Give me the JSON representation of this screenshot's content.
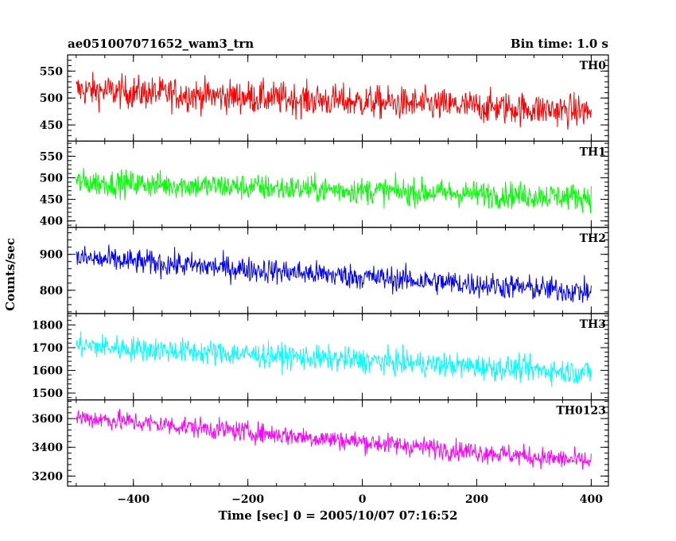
{
  "chart_data": {
    "type": "line",
    "title_left": "ae051007071652_wam3_trn",
    "title_right": "Bin time: 1.0 s",
    "xlabel": "Time [sec] 0 = 2005/10/07 07:16:52",
    "ylabel": "Counts/sec",
    "xlim": [
      -515,
      430
    ],
    "x_ticks": [
      -400,
      -200,
      0,
      200,
      400
    ],
    "x_tick_labels": [
      "−400",
      "−200",
      "0",
      "200",
      "400"
    ],
    "bin_seconds": 1.0,
    "x_range": [
      -500,
      400
    ],
    "grid": false,
    "series": [
      {
        "name": "TH0",
        "color": "#ff0000",
        "ylim": [
          420,
          580
        ],
        "yticks": [
          450,
          500,
          550
        ],
        "start": 515,
        "end": 475,
        "noise": 28
      },
      {
        "name": "TH1",
        "color": "#00ff00",
        "ylim": [
          385,
          585
        ],
        "yticks": [
          400,
          450,
          500,
          550
        ],
        "start": 490,
        "end": 455,
        "noise": 28
      },
      {
        "name": "TH2",
        "color": "#0000ff",
        "ylim": [
          735,
          975
        ],
        "yticks": [
          800,
          900
        ],
        "start": 890,
        "end": 795,
        "noise": 32
      },
      {
        "name": "TH3",
        "color": "#00ffff",
        "ylim": [
          1470,
          1850
        ],
        "yticks": [
          1500,
          1600,
          1700,
          1800
        ],
        "start": 1710,
        "end": 1590,
        "noise": 50
      },
      {
        "name": "TH0123",
        "color": "#ff00ff",
        "ylim": [
          3130,
          3730
        ],
        "yticks": [
          3200,
          3400,
          3600
        ],
        "start": 3610,
        "end": 3300,
        "noise": 65
      }
    ]
  }
}
